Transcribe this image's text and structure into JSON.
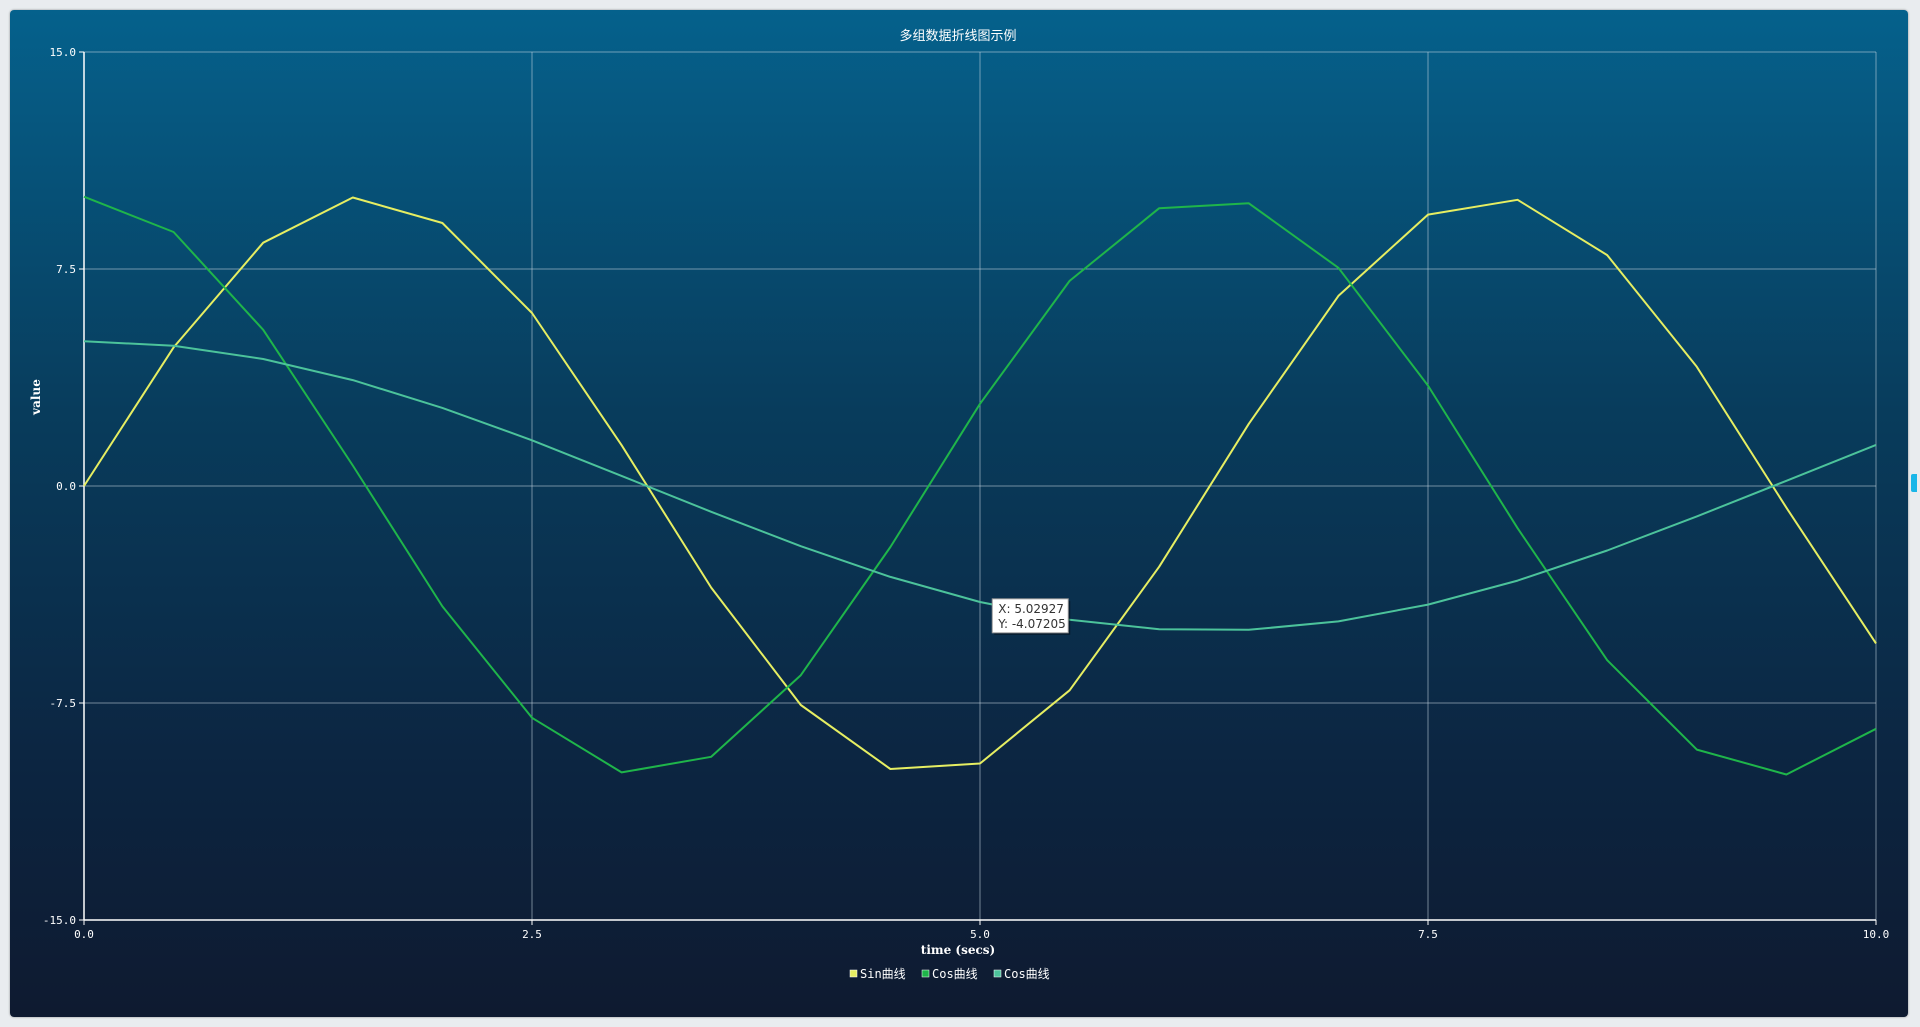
{
  "chart_data": {
    "type": "line",
    "title": "多组数据折线图示例",
    "xlabel": "time (secs)",
    "ylabel": "value",
    "xlim": [
      0,
      10
    ],
    "ylim": [
      -15,
      15
    ],
    "x_ticks": [
      "0.0",
      "2.5",
      "5.0",
      "7.5",
      "10.0"
    ],
    "y_ticks": [
      "15.0",
      "7.5",
      "0.0",
      "-7.5",
      "-15.0"
    ],
    "grid": true,
    "legend_position": "bottom-center",
    "series": [
      {
        "name": "Sin曲线",
        "color": "#e6ee62",
        "formula": "10*sin(x)",
        "x": [
          0,
          0.5,
          1,
          1.5,
          2,
          2.5,
          3,
          3.5,
          4,
          4.5,
          5,
          5.5,
          6,
          6.5,
          7,
          7.5,
          8,
          8.5,
          9,
          9.5,
          10
        ],
        "values": [
          0,
          4.79,
          8.41,
          9.97,
          9.09,
          5.98,
          1.41,
          -3.51,
          -7.57,
          -9.78,
          -9.59,
          -7.06,
          -2.79,
          2.15,
          6.57,
          9.38,
          9.89,
          7.98,
          4.12,
          -0.75,
          -5.44
        ]
      },
      {
        "name": "Cos曲线",
        "color": "#1fb54a",
        "formula": "10*cos(x)",
        "x": [
          0,
          0.5,
          1,
          1.5,
          2,
          2.5,
          3,
          3.5,
          4,
          4.5,
          5,
          5.5,
          6,
          6.5,
          7,
          7.5,
          8,
          8.5,
          9,
          9.5,
          10
        ],
        "values": [
          10,
          8.78,
          5.4,
          0.71,
          -4.16,
          -8.01,
          -9.9,
          -9.36,
          -6.54,
          -2.11,
          2.84,
          7.09,
          9.6,
          9.77,
          7.54,
          3.47,
          -1.46,
          -6.02,
          -9.11,
          -9.97,
          -8.39
        ]
      },
      {
        "name": "Cos曲线",
        "color": "#4cc39b",
        "formula": "5*cos(x/2)",
        "x": [
          0,
          0.5,
          1,
          1.5,
          2,
          2.5,
          3,
          3.5,
          4,
          4.5,
          5,
          5.5,
          6,
          6.5,
          7,
          7.5,
          8,
          8.5,
          9,
          9.5,
          10
        ],
        "values": [
          5,
          4.85,
          4.39,
          3.66,
          2.7,
          1.58,
          0.35,
          -0.89,
          -2.08,
          -3.14,
          -4.01,
          -4.62,
          -4.95,
          -4.97,
          -4.68,
          -4.1,
          -3.27,
          -2.23,
          -1.05,
          0.18,
          1.42
        ]
      }
    ],
    "tooltip": {
      "x_text": "X: 5.02927",
      "y_text": "Y: -4.07205",
      "x": 5.02927,
      "y": -4.07205
    }
  }
}
